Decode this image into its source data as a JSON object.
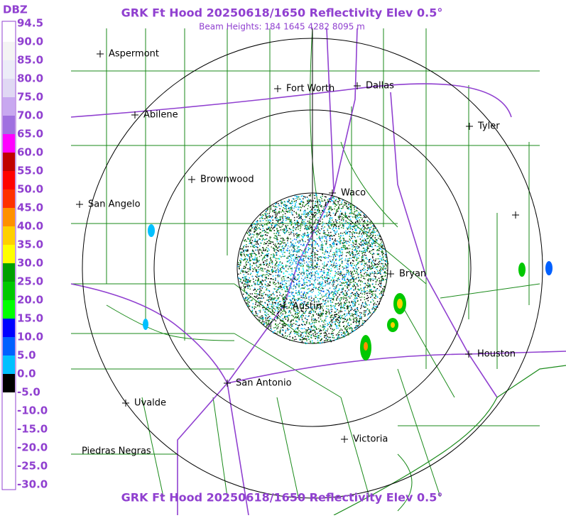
{
  "header": {
    "title": "GRK Ft Hood 20250618/1650 Reflectivity Elev 0.5°",
    "subtitle": "Beam Heights: 184 1645 4282 8095 m"
  },
  "footer": {
    "title": "GRK Ft Hood 20250618/1650 Reflectivity Elev 0.5°"
  },
  "scale": {
    "unit": "DBZ",
    "labels": [
      "94.5",
      "90.0",
      "85.0",
      "80.0",
      "75.0",
      "70.0",
      "65.0",
      "60.0",
      "55.0",
      "50.0",
      "45.0",
      "40.0",
      "35.0",
      "30.0",
      "25.0",
      "20.0",
      "15.0",
      "10.0",
      "5.0",
      "0.0",
      "-5.0",
      "-10.0",
      "-15.0",
      "-20.0",
      "-25.0",
      "-30.0"
    ],
    "colors": [
      "#ffffff",
      "#f4f4f4",
      "#ececf8",
      "#e0d8f4",
      "#c8a8f0",
      "#a070e0",
      "#ff00ff",
      "#c00000",
      "#ff0000",
      "#ff3000",
      "#ff9000",
      "#ffd000",
      "#ffff00",
      "#00a000",
      "#00c800",
      "#00ff00",
      "#0000ff",
      "#0060ff",
      "#00c0ff",
      "#000000",
      "#ffffff",
      "#ffffff",
      "#ffffff",
      "#ffffff",
      "#ffffff"
    ]
  },
  "cities": [
    {
      "label": "Aspermont"
    },
    {
      "label": "Fort Worth"
    },
    {
      "label": "Dallas"
    },
    {
      "label": "Abilene"
    },
    {
      "label": "Tyler"
    },
    {
      "label": "Brownwood"
    },
    {
      "label": "Waco"
    },
    {
      "label": "San Angelo"
    },
    {
      "label": "Bryan"
    },
    {
      "label": "Austin"
    },
    {
      "label": "Houston"
    },
    {
      "label": "San Antonio"
    },
    {
      "label": "Uvalde"
    },
    {
      "label": "Victoria"
    },
    {
      "label": "Piedras Negras"
    }
  ]
}
